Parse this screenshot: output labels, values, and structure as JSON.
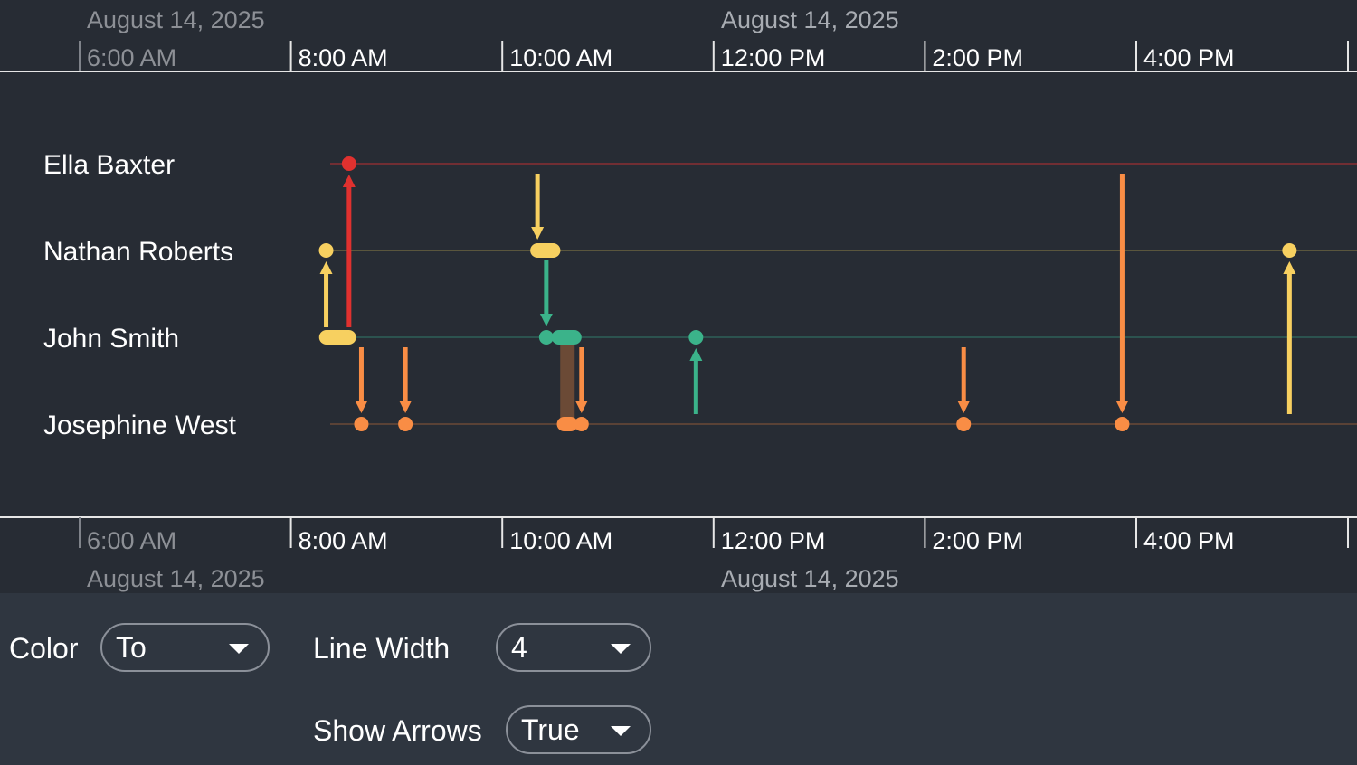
{
  "axis": {
    "top_dates": [
      {
        "label": "August 14, 2025",
        "dim": true,
        "x": 96
      },
      {
        "label": "August 14, 2025",
        "dim": false,
        "x": 797
      }
    ],
    "bottom_dates": [
      {
        "label": "August 14, 2025",
        "dim": true,
        "x": 96
      },
      {
        "label": "August 14, 2025",
        "dim": false,
        "x": 797
      }
    ],
    "times": [
      {
        "label": "6:00 AM",
        "dim": true
      },
      {
        "label": "8:00 AM",
        "dim": false
      },
      {
        "label": "10:00 AM",
        "dim": false
      },
      {
        "label": "12:00 PM",
        "dim": false
      },
      {
        "label": "2:00 PM",
        "dim": false
      },
      {
        "label": "4:00 PM",
        "dim": false
      }
    ]
  },
  "lanes": [
    {
      "name": "Ella Baxter",
      "color": "#8a2e33"
    },
    {
      "name": "Nathan Roberts",
      "color": "#6b6440"
    },
    {
      "name": "John Smith",
      "color": "#2f6058"
    },
    {
      "name": "Josephine West",
      "color": "#6b4a36"
    }
  ],
  "colors": {
    "red": "#e0312f",
    "yellow": "#f7d060",
    "orange": "#f98d45",
    "green": "#3bb38a",
    "brown": "#6b4a36"
  },
  "events": [
    {
      "time": "08:33",
      "from": "John Smith",
      "to": "Ella Baxter",
      "color": "red"
    },
    {
      "time": "08:20",
      "from": "John Smith",
      "to": "Nathan Roberts",
      "color": "yellow"
    },
    {
      "time": "08:40",
      "from": "John Smith",
      "to": "Josephine West",
      "color": "orange"
    },
    {
      "time": "09:05",
      "from": "John Smith",
      "to": "Josephine West",
      "color": "orange"
    },
    {
      "time": "10:20",
      "from": "Ella Baxter",
      "to": "Nathan Roberts",
      "color": "yellow"
    },
    {
      "time": "10:25",
      "from": "Nathan Roberts",
      "to": "John Smith",
      "color": "green"
    },
    {
      "time": "10:45",
      "from": "John Smith",
      "to": "Josephine West",
      "color": "orange"
    },
    {
      "time": "11:50",
      "from": "Josephine West",
      "to": "John Smith",
      "color": "green"
    },
    {
      "time": "14:22",
      "from": "John Smith",
      "to": "Josephine West",
      "color": "orange"
    },
    {
      "time": "15:52",
      "from": "Ella Baxter",
      "to": "Josephine West",
      "color": "orange"
    },
    {
      "time": "17:27",
      "from": "Josephine West",
      "to": "Nathan Roberts",
      "color": "yellow"
    }
  ],
  "bars": [
    {
      "lane": "John Smith",
      "start": "08:16",
      "end": "08:37",
      "color": "yellow"
    },
    {
      "lane": "Nathan Roberts",
      "start": "10:17",
      "end": "10:33",
      "color": "yellow"
    },
    {
      "lane": "John Smith",
      "start": "10:28",
      "end": "10:45",
      "color": "green"
    },
    {
      "lane": "Josephine West",
      "start": "10:31",
      "end": "10:43",
      "color": "orange"
    }
  ],
  "spans": [
    {
      "time": "10:37",
      "from": "John Smith",
      "to": "Josephine West",
      "color": "brown"
    }
  ],
  "controls": {
    "color": {
      "label": "Color",
      "value": "To"
    },
    "line_width": {
      "label": "Line Width",
      "value": "4"
    },
    "show_arrows": {
      "label": "Show Arrows",
      "value": "True"
    }
  }
}
